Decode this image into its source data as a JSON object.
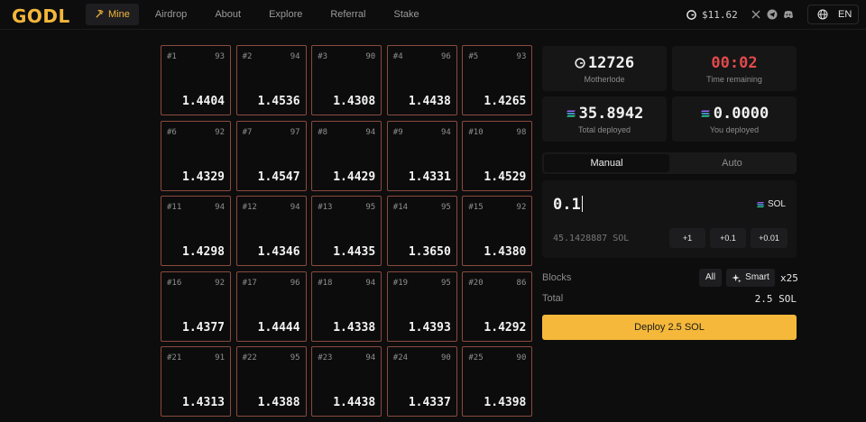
{
  "app": {
    "logo": "GODL"
  },
  "nav": {
    "items": [
      {
        "label": "Mine",
        "active": true,
        "icon": "pickaxe-icon"
      },
      {
        "label": "Airdrop"
      },
      {
        "label": "About"
      },
      {
        "label": "Explore"
      },
      {
        "label": "Referral"
      },
      {
        "label": "Stake"
      }
    ]
  },
  "header": {
    "balance": "$11.62",
    "language": "EN"
  },
  "blocks": [
    {
      "id": "#1",
      "count": "93",
      "value": "1.4404"
    },
    {
      "id": "#2",
      "count": "94",
      "value": "1.4536"
    },
    {
      "id": "#3",
      "count": "90",
      "value": "1.4308"
    },
    {
      "id": "#4",
      "count": "96",
      "value": "1.4438"
    },
    {
      "id": "#5",
      "count": "93",
      "value": "1.4265"
    },
    {
      "id": "#6",
      "count": "92",
      "value": "1.4329"
    },
    {
      "id": "#7",
      "count": "97",
      "value": "1.4547"
    },
    {
      "id": "#8",
      "count": "94",
      "value": "1.4429"
    },
    {
      "id": "#9",
      "count": "94",
      "value": "1.4331"
    },
    {
      "id": "#10",
      "count": "98",
      "value": "1.4529"
    },
    {
      "id": "#11",
      "count": "94",
      "value": "1.4298"
    },
    {
      "id": "#12",
      "count": "94",
      "value": "1.4346"
    },
    {
      "id": "#13",
      "count": "95",
      "value": "1.4435"
    },
    {
      "id": "#14",
      "count": "95",
      "value": "1.3650"
    },
    {
      "id": "#15",
      "count": "92",
      "value": "1.4380"
    },
    {
      "id": "#16",
      "count": "92",
      "value": "1.4377"
    },
    {
      "id": "#17",
      "count": "96",
      "value": "1.4444"
    },
    {
      "id": "#18",
      "count": "94",
      "value": "1.4338"
    },
    {
      "id": "#19",
      "count": "95",
      "value": "1.4393"
    },
    {
      "id": "#20",
      "count": "86",
      "value": "1.4292"
    },
    {
      "id": "#21",
      "count": "91",
      "value": "1.4313"
    },
    {
      "id": "#22",
      "count": "95",
      "value": "1.4388"
    },
    {
      "id": "#23",
      "count": "94",
      "value": "1.4438"
    },
    {
      "id": "#24",
      "count": "90",
      "value": "1.4337"
    },
    {
      "id": "#25",
      "count": "90",
      "value": "1.4398"
    }
  ],
  "stats": {
    "motherlode": {
      "value": "12726",
      "label": "Motherlode"
    },
    "time_remaining": {
      "value": "00:02",
      "label": "Time remaining"
    },
    "total_deployed": {
      "value": "35.8942",
      "label": "Total deployed"
    },
    "you_deployed": {
      "value": "0.0000",
      "label": "You deployed"
    }
  },
  "mode_tabs": {
    "manual": "Manual",
    "auto": "Auto"
  },
  "amount": {
    "value": "0.1",
    "currency": "SOL",
    "wallet_balance": "45.1428887 SOL",
    "increments": [
      "+1",
      "+0.1",
      "+0.01"
    ]
  },
  "blocks_row": {
    "label": "Blocks",
    "all": "All",
    "smart": "Smart",
    "multiplier": "x25"
  },
  "total_row": {
    "label": "Total",
    "value": "2.5 SOL"
  },
  "deploy_button": "Deploy 2.5 SOL",
  "colors": {
    "accent": "#f5b83a",
    "tile_border": "#8a4a3c",
    "timer": "#e24a4a"
  }
}
